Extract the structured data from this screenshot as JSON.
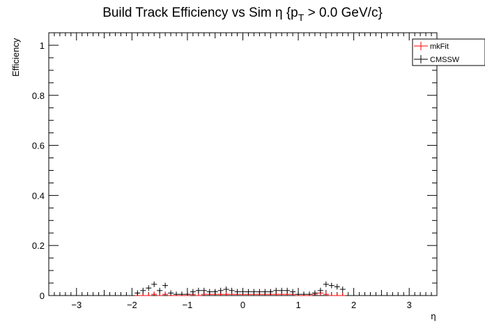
{
  "chart_data": {
    "type": "scatter",
    "title": "Build Track Efficiency vs Sim η {p",
    "title_sub": "T",
    "title_tail": " > 0.0 GeV/c}",
    "xlabel": "η",
    "ylabel": "Efficiency",
    "xlim": [
      -3.5,
      3.5
    ],
    "ylim": [
      0,
      1.05
    ],
    "xticks": [
      "−3",
      "−2",
      "−1",
      "0",
      "1",
      "2",
      "3"
    ],
    "xtick_values": [
      -3,
      -2,
      -1,
      0,
      1,
      2,
      3
    ],
    "yticks": [
      "0",
      "0.2",
      "0.4",
      "0.6",
      "0.8",
      "1"
    ],
    "ytick_values": [
      0,
      0.2,
      0.4,
      0.6,
      0.8,
      1
    ],
    "grid": false,
    "legend_position": "top-right",
    "series": [
      {
        "name": "mkFit",
        "color": "#ff0000",
        "x": [
          -1.9,
          -1.8,
          -1.7,
          -1.6,
          -1.5,
          -1.4,
          -1.3,
          -1.2,
          -1.1,
          -1.0,
          -0.9,
          -0.8,
          -0.7,
          -0.6,
          -0.5,
          -0.4,
          -0.3,
          -0.2,
          -0.1,
          0.0,
          0.1,
          0.2,
          0.3,
          0.4,
          0.5,
          0.6,
          0.7,
          0.8,
          0.9,
          1.0,
          1.1,
          1.2,
          1.3,
          1.4,
          1.5,
          1.6,
          1.7,
          1.8
        ],
        "y": [
          0.0,
          0.0,
          0.0,
          0.005,
          0.0,
          0.005,
          0.0,
          0.0,
          0.0,
          0.0,
          0.005,
          0.0,
          0.005,
          0.005,
          0.005,
          0.005,
          0.005,
          0.005,
          0.005,
          0.005,
          0.005,
          0.005,
          0.005,
          0.005,
          0.005,
          0.005,
          0.005,
          0.005,
          0.005,
          0.0,
          0.0,
          0.0,
          0.005,
          0.01,
          0.005,
          0.0,
          0.0,
          0.0
        ]
      },
      {
        "name": "CMSSW",
        "color": "#000000",
        "x": [
          -1.9,
          -1.8,
          -1.7,
          -1.6,
          -1.5,
          -1.4,
          -1.3,
          -1.2,
          -1.1,
          -1.0,
          -0.9,
          -0.8,
          -0.7,
          -0.6,
          -0.5,
          -0.4,
          -0.3,
          -0.2,
          -0.1,
          0.0,
          0.1,
          0.2,
          0.3,
          0.4,
          0.5,
          0.6,
          0.7,
          0.8,
          0.9,
          1.0,
          1.1,
          1.2,
          1.3,
          1.4,
          1.5,
          1.6,
          1.7,
          1.8
        ],
        "y": [
          0.01,
          0.02,
          0.03,
          0.045,
          0.02,
          0.04,
          0.01,
          0.005,
          0.005,
          0.005,
          0.015,
          0.02,
          0.02,
          0.015,
          0.015,
          0.02,
          0.025,
          0.02,
          0.015,
          0.015,
          0.015,
          0.015,
          0.015,
          0.015,
          0.015,
          0.02,
          0.02,
          0.02,
          0.015,
          0.005,
          0.005,
          0.005,
          0.01,
          0.02,
          0.045,
          0.04,
          0.035,
          0.025
        ]
      }
    ]
  }
}
